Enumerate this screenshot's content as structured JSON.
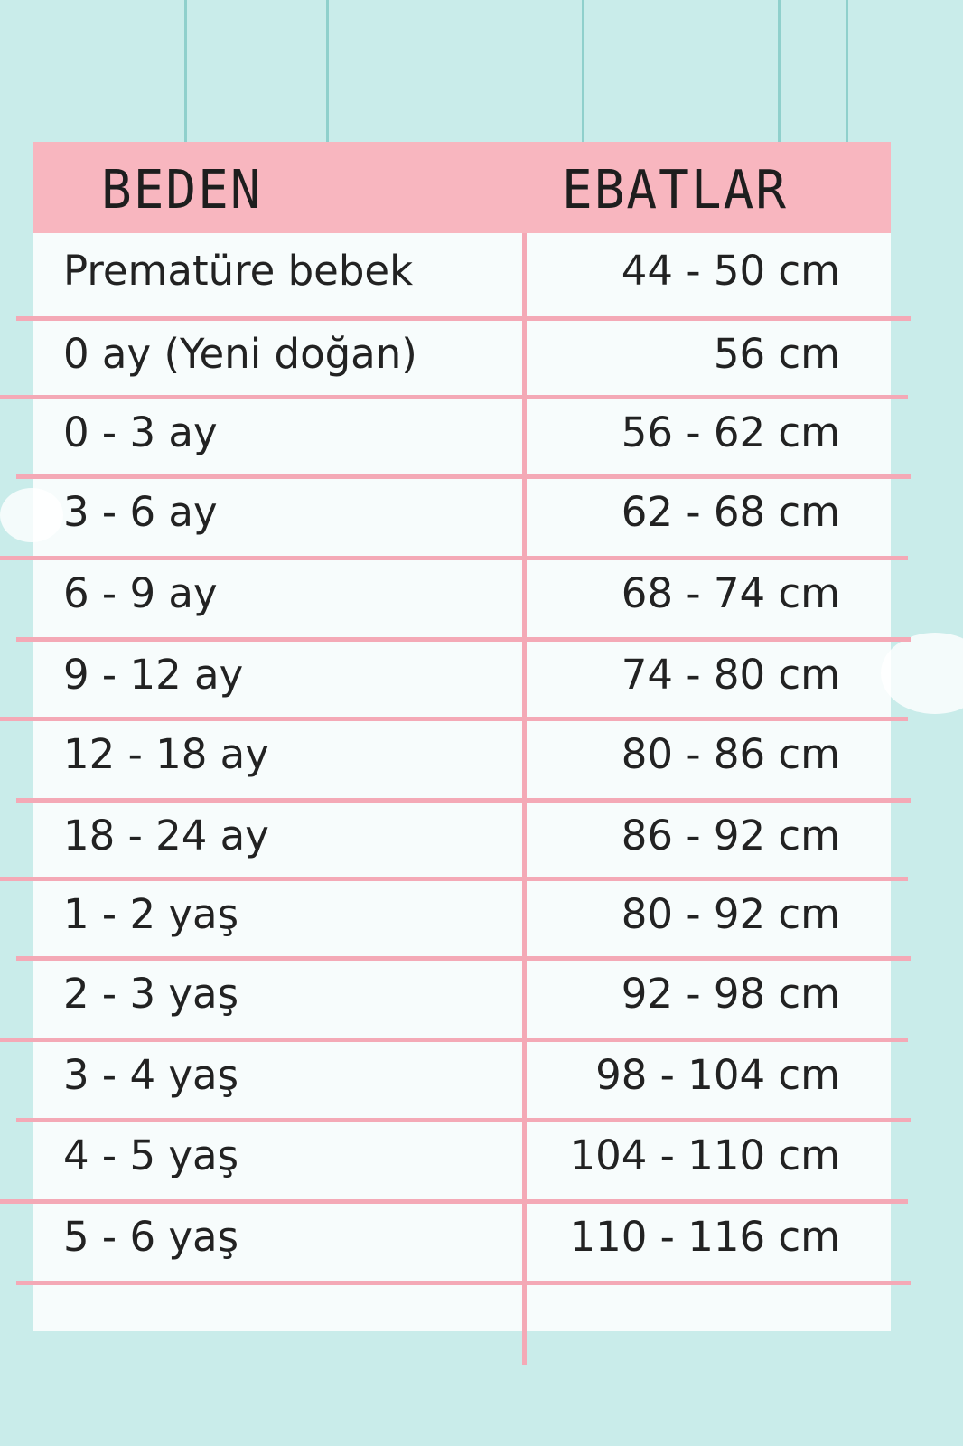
{
  "header": {
    "size_label": "BEDEN",
    "measure_label": "EBATLAR"
  },
  "rows": [
    {
      "size": "Prematüre bebek",
      "measure": "44 - 50 cm"
    },
    {
      "size": "0 ay (Yeni doğan)",
      "measure": "56 cm"
    },
    {
      "size": "0 - 3 ay",
      "measure": "56 - 62 cm"
    },
    {
      "size": "3 - 6 ay",
      "measure": "62 - 68 cm"
    },
    {
      "size": "6 - 9 ay",
      "measure": "68 - 74 cm"
    },
    {
      "size": "9 - 12 ay",
      "measure": "74 - 80 cm"
    },
    {
      "size": "12 - 18 ay",
      "measure": "80 - 86 cm"
    },
    {
      "size": "18 - 24 ay",
      "measure": "86 - 92 cm"
    },
    {
      "size": "1 - 2 yaş",
      "measure": "80 - 92 cm"
    },
    {
      "size": "2 - 3 yaş",
      "measure": "92 - 98 cm"
    },
    {
      "size": "3 - 4 yaş",
      "measure": "98 - 104 cm"
    },
    {
      "size": "4 - 5 yaş",
      "measure": "104 - 110 cm"
    },
    {
      "size": "5 - 6 yaş",
      "measure": "110 - 116 cm"
    }
  ],
  "colors": {
    "background": "#c9ecea",
    "header": "#f8b6bf",
    "lines": "#f4a9b6"
  }
}
